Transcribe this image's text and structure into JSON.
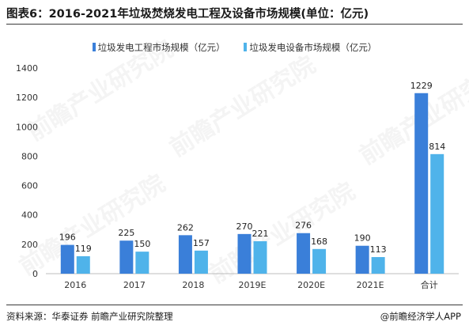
{
  "title": "图表6：2016-2021年垃圾焚烧发电工程及设备市场规模(单位：亿元)",
  "source": "资料来源：华泰证券 前瞻产业研究院整理",
  "brand": "@前瞻经济学人APP",
  "watermark_text": "前瞻产业研究院",
  "colors": {
    "engineering": "#3a7fd9",
    "equipment": "#4fb3ea"
  },
  "chart_data": {
    "type": "bar",
    "categories": [
      "2016",
      "2017",
      "2018",
      "2019E",
      "2020E",
      "2021E",
      "合计"
    ],
    "series": [
      {
        "name": "垃圾发电工程市场规模（亿元）",
        "values": [
          196,
          225,
          262,
          270,
          276,
          190,
          1229
        ]
      },
      {
        "name": "垃圾发电设备市场规模（亿元）",
        "values": [
          119,
          150,
          157,
          221,
          168,
          113,
          814
        ]
      }
    ],
    "ylim": [
      0,
      1400
    ],
    "yticks": [
      0,
      200,
      400,
      600,
      800,
      1000,
      1200,
      1400
    ],
    "grid": false,
    "legend_position": "top"
  }
}
